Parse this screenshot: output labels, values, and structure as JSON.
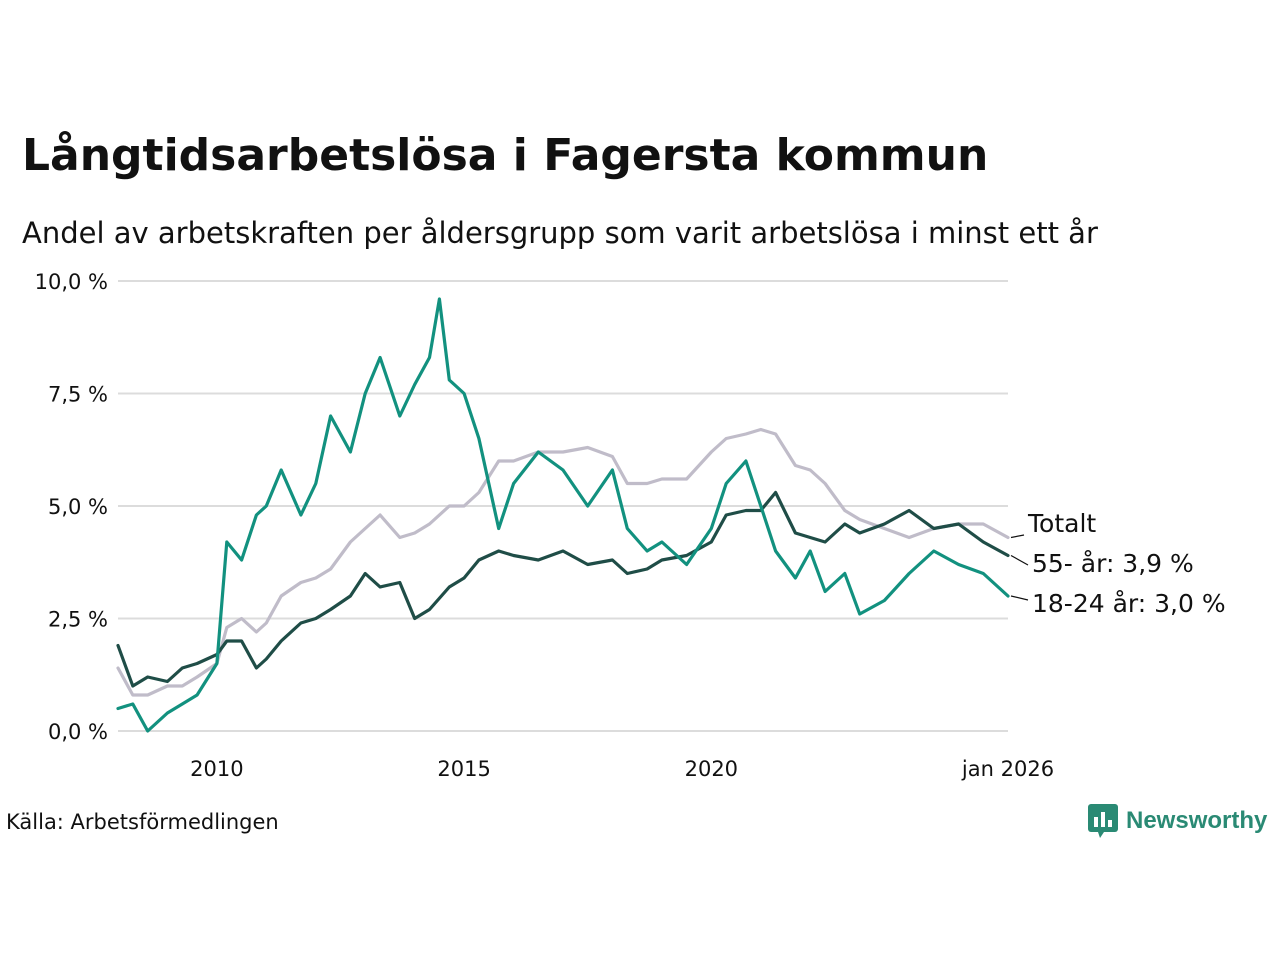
{
  "header": {
    "title": "Långtidsarbetslösa i Fagersta kommun",
    "subtitle": "Andel av arbetskraften per åldersgrupp som varit arbetslösa i minst ett år"
  },
  "footer": {
    "source": "Källa: Arbetsförmedlingen",
    "brand": "Newsworthy"
  },
  "colors": {
    "total": "#c0bcc9",
    "age55": "#1f4d47",
    "age1824": "#12917f",
    "grid": "#dcdcdc",
    "brand": "#2a8a74"
  },
  "chart_data": {
    "type": "line",
    "title": "Långtidsarbetslösa i Fagersta kommun",
    "xlabel": "",
    "ylabel": "",
    "xlim": [
      2008.0,
      2026.0
    ],
    "ylim": [
      0,
      10
    ],
    "grid": true,
    "y_ticks": [
      {
        "value": 0,
        "label": "0,0 %"
      },
      {
        "value": 2.5,
        "label": "2,5 %"
      },
      {
        "value": 5,
        "label": "5,0 %"
      },
      {
        "value": 7.5,
        "label": "7,5 %"
      },
      {
        "value": 10,
        "label": "10,0 %"
      }
    ],
    "x_ticks": [
      {
        "value": 2010,
        "label": "2010"
      },
      {
        "value": 2015,
        "label": "2015"
      },
      {
        "value": 2020,
        "label": "2020"
      },
      {
        "value": 2026,
        "label": "jan 2026"
      }
    ],
    "series": [
      {
        "name": "Totalt",
        "label": "Totalt",
        "color_key": "total",
        "x": [
          2008.0,
          2008.3,
          2008.6,
          2009.0,
          2009.3,
          2009.6,
          2010.0,
          2010.2,
          2010.5,
          2010.8,
          2011.0,
          2011.3,
          2011.7,
          2012.0,
          2012.3,
          2012.7,
          2013.0,
          2013.3,
          2013.7,
          2014.0,
          2014.3,
          2014.7,
          2015.0,
          2015.3,
          2015.7,
          2016.0,
          2016.5,
          2017.0,
          2017.5,
          2018.0,
          2018.3,
          2018.7,
          2019.0,
          2019.5,
          2020.0,
          2020.3,
          2020.7,
          2021.0,
          2021.3,
          2021.7,
          2022.0,
          2022.3,
          2022.7,
          2023.0,
          2023.5,
          2024.0,
          2024.5,
          2025.0,
          2025.5,
          2026.0
        ],
        "values": [
          1.4,
          0.8,
          0.8,
          1.0,
          1.0,
          1.2,
          1.5,
          2.3,
          2.5,
          2.2,
          2.4,
          3.0,
          3.3,
          3.4,
          3.6,
          4.2,
          4.5,
          4.8,
          4.3,
          4.4,
          4.6,
          5.0,
          5.0,
          5.3,
          6.0,
          6.0,
          6.2,
          6.2,
          6.3,
          6.1,
          5.5,
          5.5,
          5.6,
          5.6,
          6.2,
          6.5,
          6.6,
          6.7,
          6.6,
          5.9,
          5.8,
          5.5,
          4.9,
          4.7,
          4.5,
          4.3,
          4.5,
          4.6,
          4.6,
          4.3
        ]
      },
      {
        "name": "55- år",
        "label": "55- år: 3,9 %",
        "color_key": "age55",
        "x": [
          2008.0,
          2008.3,
          2008.6,
          2009.0,
          2009.3,
          2009.6,
          2010.0,
          2010.2,
          2010.5,
          2010.8,
          2011.0,
          2011.3,
          2011.7,
          2012.0,
          2012.3,
          2012.7,
          2013.0,
          2013.3,
          2013.7,
          2014.0,
          2014.3,
          2014.7,
          2015.0,
          2015.3,
          2015.7,
          2016.0,
          2016.5,
          2017.0,
          2017.5,
          2018.0,
          2018.3,
          2018.7,
          2019.0,
          2019.5,
          2020.0,
          2020.3,
          2020.7,
          2021.0,
          2021.3,
          2021.7,
          2022.0,
          2022.3,
          2022.7,
          2023.0,
          2023.5,
          2024.0,
          2024.5,
          2025.0,
          2025.5,
          2026.0
        ],
        "values": [
          1.9,
          1.0,
          1.2,
          1.1,
          1.4,
          1.5,
          1.7,
          2.0,
          2.0,
          1.4,
          1.6,
          2.0,
          2.4,
          2.5,
          2.7,
          3.0,
          3.5,
          3.2,
          3.3,
          2.5,
          2.7,
          3.2,
          3.4,
          3.8,
          4.0,
          3.9,
          3.8,
          4.0,
          3.7,
          3.8,
          3.5,
          3.6,
          3.8,
          3.9,
          4.2,
          4.8,
          4.9,
          4.9,
          5.3,
          4.4,
          4.3,
          4.2,
          4.6,
          4.4,
          4.6,
          4.9,
          4.5,
          4.6,
          4.2,
          3.9
        ]
      },
      {
        "name": "18-24 år",
        "label": "18-24 år: 3,0 %",
        "color_key": "age1824",
        "x": [
          2008.0,
          2008.3,
          2008.6,
          2009.0,
          2009.3,
          2009.6,
          2010.0,
          2010.2,
          2010.5,
          2010.8,
          2011.0,
          2011.3,
          2011.7,
          2012.0,
          2012.3,
          2012.7,
          2013.0,
          2013.3,
          2013.7,
          2014.0,
          2014.3,
          2014.5,
          2014.7,
          2015.0,
          2015.3,
          2015.7,
          2016.0,
          2016.5,
          2017.0,
          2017.5,
          2018.0,
          2018.3,
          2018.7,
          2019.0,
          2019.5,
          2020.0,
          2020.3,
          2020.7,
          2021.0,
          2021.3,
          2021.7,
          2022.0,
          2022.3,
          2022.7,
          2023.0,
          2023.5,
          2024.0,
          2024.5,
          2025.0,
          2025.5,
          2026.0
        ],
        "values": [
          0.5,
          0.6,
          0.0,
          0.4,
          0.6,
          0.8,
          1.5,
          4.2,
          3.8,
          4.8,
          5.0,
          5.8,
          4.8,
          5.5,
          7.0,
          6.2,
          7.5,
          8.3,
          7.0,
          7.7,
          8.3,
          9.6,
          7.8,
          7.5,
          6.5,
          4.5,
          5.5,
          6.2,
          5.8,
          5.0,
          5.8,
          4.5,
          4.0,
          4.2,
          3.7,
          4.5,
          5.5,
          6.0,
          5.0,
          4.0,
          3.4,
          4.0,
          3.1,
          3.5,
          2.6,
          2.9,
          3.5,
          4.0,
          3.7,
          3.5,
          3.0
        ]
      }
    ]
  }
}
